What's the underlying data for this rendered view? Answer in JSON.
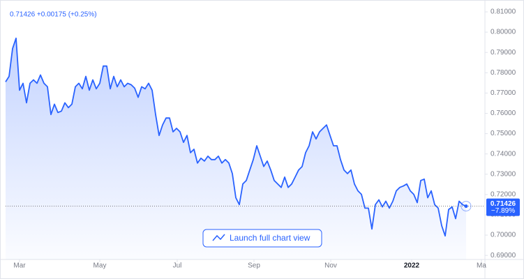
{
  "chart_data": {
    "type": "area",
    "header": "0.71426 +0.00175 (+0.25%)",
    "price_label": "0.71426",
    "change_label": "−7.89%",
    "button": "Launch full chart view",
    "color": "#2962ff",
    "values": [
      0.7755,
      0.7782,
      0.7919,
      0.797,
      0.7714,
      0.7748,
      0.7652,
      0.7748,
      0.7765,
      0.7748,
      0.7789,
      0.7748,
      0.7731,
      0.7594,
      0.7645,
      0.7604,
      0.7611,
      0.7652,
      0.7628,
      0.7645,
      0.7731,
      0.7748,
      0.7721,
      0.7782,
      0.7714,
      0.7765,
      0.7721,
      0.7748,
      0.7833,
      0.7833,
      0.7721,
      0.7782,
      0.7731,
      0.7765,
      0.7731,
      0.7748,
      0.7741,
      0.7724,
      0.7679,
      0.7731,
      0.7721,
      0.7748,
      0.7714,
      0.7594,
      0.7491,
      0.7543,
      0.7577,
      0.7577,
      0.7509,
      0.7526,
      0.7509,
      0.7457,
      0.7491,
      0.7406,
      0.7423,
      0.7355,
      0.7379,
      0.7365,
      0.7389,
      0.7372,
      0.7372,
      0.7389,
      0.7355,
      0.7372,
      0.7355,
      0.7303,
      0.7184,
      0.715,
      0.7252,
      0.7269,
      0.7321,
      0.7372,
      0.744,
      0.7389,
      0.7338,
      0.7365,
      0.7321,
      0.7269,
      0.7252,
      0.7235,
      0.7286,
      0.7235,
      0.7252,
      0.7286,
      0.7321,
      0.7338,
      0.7406,
      0.744,
      0.7509,
      0.7474,
      0.7509,
      0.7526,
      0.7543,
      0.7491,
      0.744,
      0.744,
      0.7372,
      0.7321,
      0.7303,
      0.7321,
      0.7252,
      0.7218,
      0.7201,
      0.7133,
      0.7133,
      0.703,
      0.715,
      0.7174,
      0.7139,
      0.7167,
      0.7133,
      0.7167,
      0.7218,
      0.7235,
      0.7242,
      0.7252,
      0.7218,
      0.7201,
      0.716,
      0.7269,
      0.7276,
      0.7184,
      0.7218,
      0.715,
      0.7133,
      0.7047,
      0.6996,
      0.7126,
      0.7139,
      0.7081,
      0.7167,
      0.715,
      0.71426
    ],
    "xlim": [
      0,
      137.4
    ],
    "xticks": [
      {
        "value": 4,
        "label": "Mar"
      },
      {
        "value": 27,
        "label": "May"
      },
      {
        "value": 49.2,
        "label": "Jul"
      },
      {
        "value": 71.2,
        "label": "Sep"
      },
      {
        "value": 93.2,
        "label": "Nov"
      },
      {
        "value": 116.4,
        "label": "2022"
      },
      {
        "value": 136.4,
        "label": "Ma"
      }
    ],
    "ylim": [
      0.688,
      0.81
    ],
    "yticks": [
      {
        "value": 0.69,
        "label": "0.69000"
      },
      {
        "value": 0.7,
        "label": "0.70000"
      },
      {
        "value": 0.71,
        "label": "0.71000"
      },
      {
        "value": 0.72,
        "label": "0.72000"
      },
      {
        "value": 0.73,
        "label": "0.73000"
      },
      {
        "value": 0.74,
        "label": "0.74000"
      },
      {
        "value": 0.75,
        "label": "0.75000"
      },
      {
        "value": 0.76,
        "label": "0.76000"
      },
      {
        "value": 0.77,
        "label": "0.77000"
      },
      {
        "value": 0.78,
        "label": "0.78000"
      },
      {
        "value": 0.79,
        "label": "0.79000"
      },
      {
        "value": 0.8,
        "label": "0.80000"
      },
      {
        "value": 0.81,
        "label": "0.81000"
      }
    ]
  }
}
